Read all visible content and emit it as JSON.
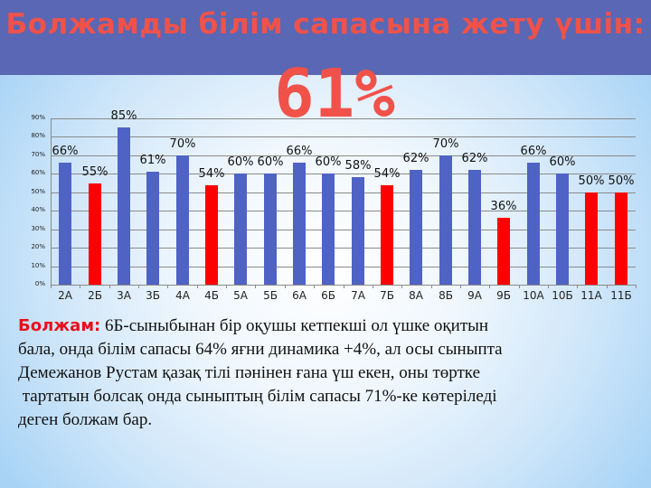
{
  "slide": {
    "title": "Болжамды білім сапасына жету үшін:",
    "big_value": "61%",
    "colors": {
      "header_bg": "#5a67b4",
      "title_color": "#f0524a",
      "bar_blue": "#4f63c4",
      "bar_red": "#ff0000",
      "prefix_color": "#e8101c"
    }
  },
  "chart_data": {
    "type": "bar",
    "title": "",
    "xlabel": "",
    "ylabel": "",
    "ylim": [
      0,
      90
    ],
    "y_ticks": [
      "0%",
      "10%",
      "20%",
      "30%",
      "40%",
      "50%",
      "60%",
      "70%",
      "80%",
      "90%"
    ],
    "grid": true,
    "legend": "none",
    "categories": [
      "2А",
      "2Б",
      "3А",
      "3Б",
      "4А",
      "4Б",
      "5А",
      "5Б",
      "6А",
      "6Б",
      "7А",
      "7Б",
      "8А",
      "8Б",
      "9А",
      "9Б",
      "10А",
      "10Б",
      "11А",
      "11Б"
    ],
    "values": [
      66,
      55,
      85,
      61,
      70,
      54,
      60,
      60,
      66,
      60,
      58,
      54,
      62,
      70,
      62,
      36,
      66,
      60,
      50,
      50
    ],
    "labels": [
      "66%",
      "55%",
      "85%",
      "61%",
      "70%",
      "54%",
      "60%",
      "60%",
      "66%",
      "60%",
      "58%",
      "54%",
      "62%",
      "70%",
      "62%",
      "36%",
      "66%",
      "60%",
      "50%",
      "50%"
    ],
    "bar_colors": [
      "blue",
      "red",
      "blue",
      "blue",
      "blue",
      "red",
      "blue",
      "blue",
      "blue",
      "blue",
      "blue",
      "red",
      "blue",
      "blue",
      "blue",
      "red",
      "blue",
      "blue",
      "red",
      "red"
    ]
  },
  "forecast": {
    "prefix": "Болжам:",
    "lines": [
      " 6Б-сыныбынан бір оқушы кетпекші ол үшке оқитын",
      "бала, онда білім сапасы 64% яғни динамика +4%, ал осы сыныпта",
      "Демежанов Рустам қазақ тілі пәнінен ғана үш екен, оны төртке",
      " тартатын болсақ онда сыныптың білім сапасы 71%-ке көтеріледі",
      "деген болжам бар."
    ]
  }
}
